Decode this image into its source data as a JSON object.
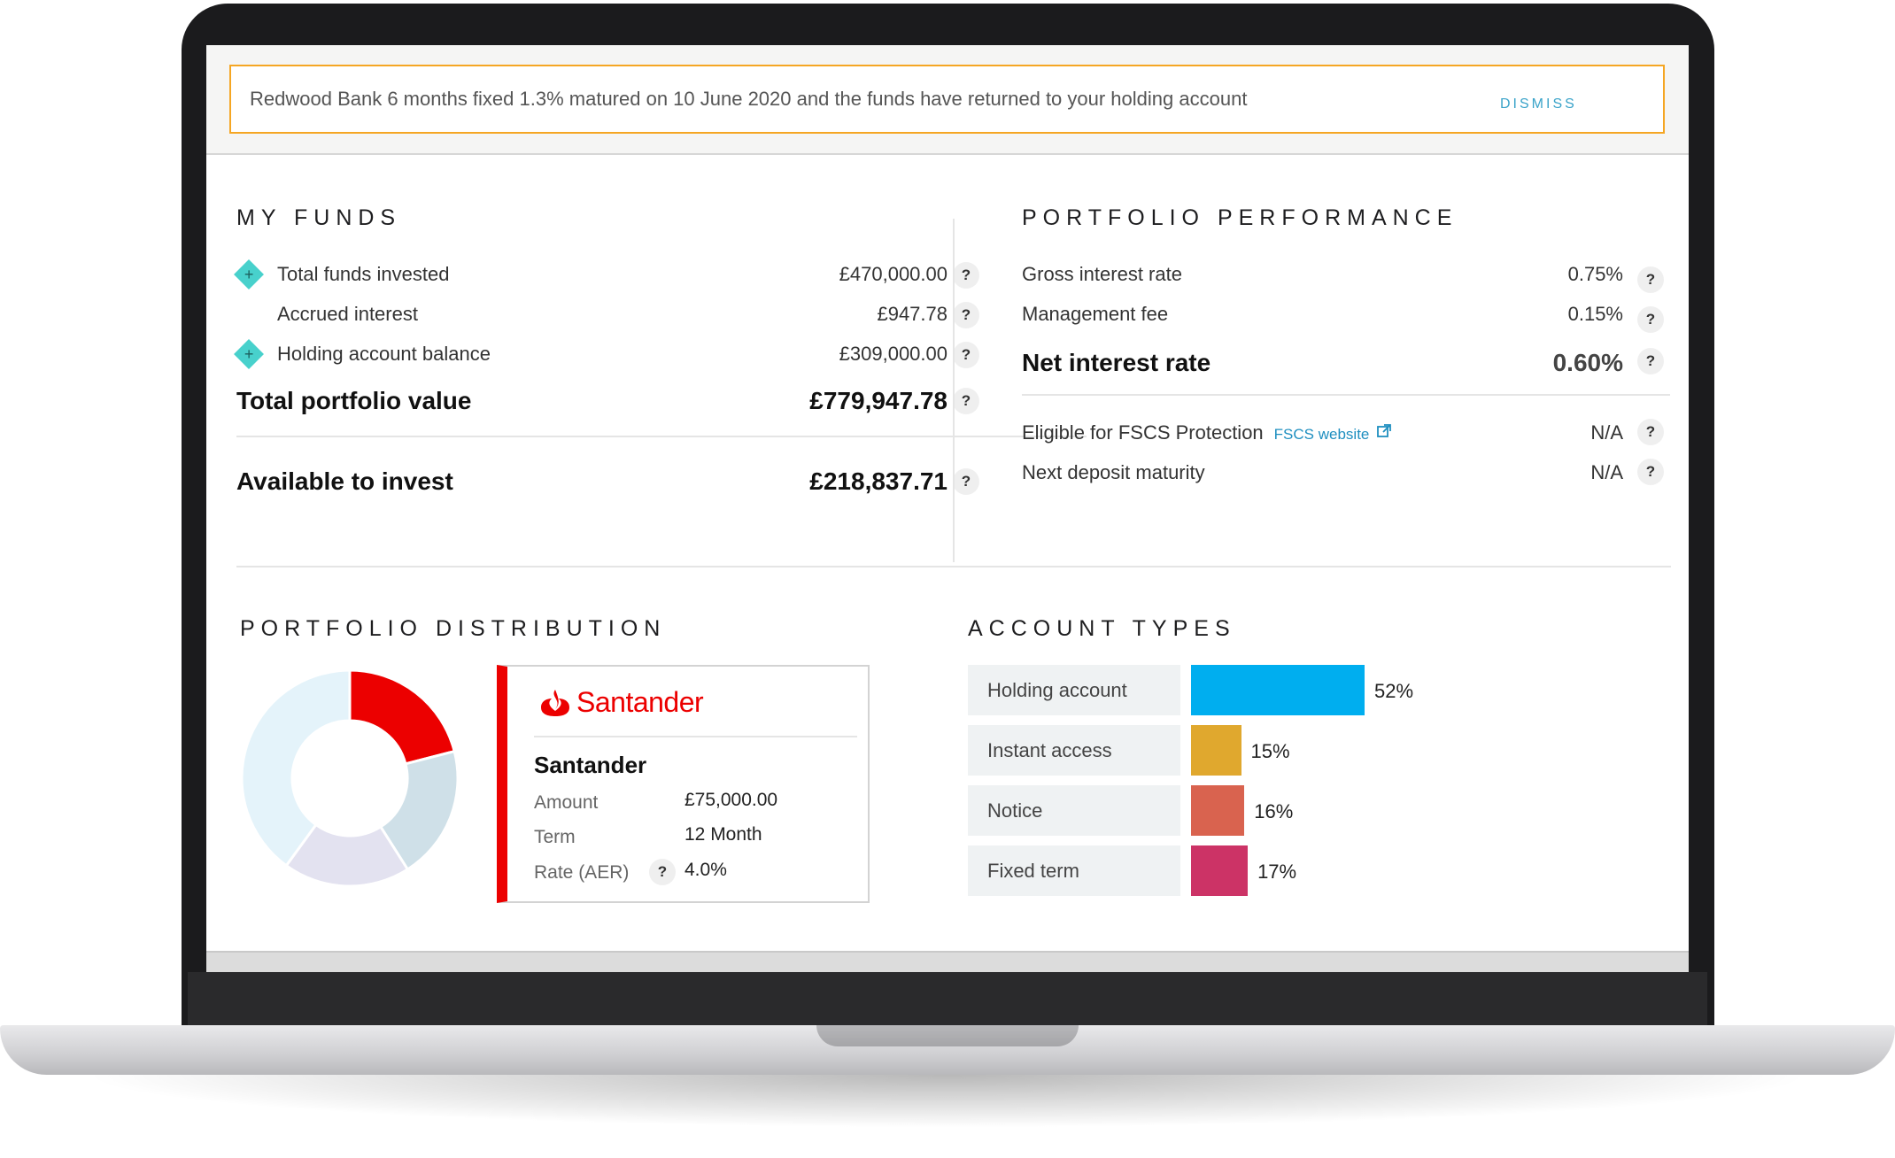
{
  "banner": {
    "message": "Redwood Bank 6 months fixed 1.3% matured on 10 June 2020 and the funds have returned to your holding account",
    "dismiss_label": "DISMISS"
  },
  "my_funds": {
    "title": "MY FUNDS",
    "rows": [
      {
        "label": "Total funds invested",
        "value": "£470,000.00",
        "help": "?",
        "icon": "plus-diamond-icon"
      },
      {
        "label": "Accrued interest",
        "value": "£947.78",
        "help": "?"
      },
      {
        "label": "Holding account balance",
        "value": "£309,000.00",
        "help": "?",
        "icon": "plus-diamond-icon"
      }
    ],
    "total": {
      "label": "Total portfolio value",
      "value": "£779,947.78",
      "help": "?"
    },
    "available": {
      "label": "Available to invest",
      "value": "£218,837.71",
      "help": "?"
    }
  },
  "portfolio_performance": {
    "title": "PORTFOLIO PERFORMANCE",
    "rows": [
      {
        "label": "Gross interest rate",
        "value": "0.75%",
        "help": "?"
      },
      {
        "label": "Management fee",
        "value": "0.15%",
        "help": "?"
      }
    ],
    "net": {
      "label": "Net interest rate",
      "value": "0.60%",
      "help": "?"
    },
    "fscs": {
      "label": "Eligible for FSCS Protection",
      "link": "FSCS website",
      "value": "N/A",
      "help": "?"
    },
    "maturity": {
      "label": "Next deposit maturity",
      "value": "N/A",
      "help": "?"
    }
  },
  "portfolio_distribution": {
    "title": "PORTFOLIO DISTRIBUTION",
    "chart_data": {
      "type": "pie",
      "segments": [
        {
          "label": "Santander",
          "value": 21,
          "color": "#ec0000"
        },
        {
          "label": "",
          "value": 20,
          "color": "#cfe0e8"
        },
        {
          "label": "",
          "value": 19,
          "color": "#e3e2f0"
        },
        {
          "label": "",
          "value": 40,
          "color": "#e4f3fa"
        }
      ]
    },
    "card": {
      "logo_text": "Santander",
      "name": "Santander",
      "amount_label": "Amount",
      "amount_value": "£75,000.00",
      "term_label": "Term",
      "term_value": "12 Month",
      "rate_label": "Rate (AER)",
      "rate_help": "?",
      "rate_value": "4.0%",
      "accent_color": "#ec0000"
    }
  },
  "account_types": {
    "title": "ACCOUNT TYPES",
    "chart_data": {
      "type": "bar",
      "categories": [
        "Holding account",
        "Instant access",
        "Notice",
        "Fixed term"
      ],
      "values": [
        52,
        15,
        16,
        17
      ],
      "value_labels": [
        "52%",
        "15%",
        "16%",
        "17%"
      ],
      "colors": [
        "#00aeef",
        "#e0a82e",
        "#d9634f",
        "#cc3366"
      ]
    }
  }
}
